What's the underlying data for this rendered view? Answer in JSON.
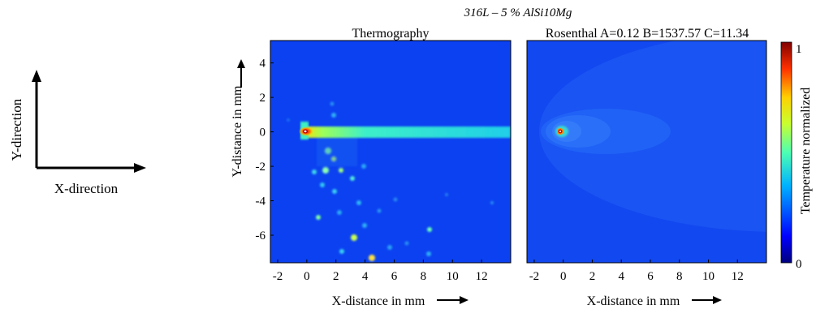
{
  "figure_title": "316L – 5 % AlSi10Mg",
  "direction_legend": {
    "y_label": "Y-direction",
    "x_label": "X-direction"
  },
  "colorbar": {
    "label": "Temperature normalized",
    "max_label": "1",
    "min_label": "0",
    "range": [
      0,
      1
    ],
    "colormap": "jet"
  },
  "chart_data": [
    {
      "type": "heatmap",
      "title": "Thermography",
      "xlabel": "X-distance in mm",
      "ylabel": "Y-distance in mm",
      "xlim": [
        -2.5,
        14
      ],
      "ylim": [
        -7.6,
        5.3
      ],
      "x_ticks": [
        -2,
        0,
        2,
        4,
        6,
        8,
        10,
        12
      ],
      "y_ticks": [
        -6,
        -4,
        -2,
        0,
        2,
        4
      ],
      "hotspot": [
        0,
        0
      ],
      "colors": {
        "background": "#0a3ef0",
        "track": "#22d9e0",
        "peak": "#c41000"
      }
    },
    {
      "type": "heatmap",
      "title": "Rosenthal A=0.12 B=1537.57 C=11.34",
      "xlabel": "X-distance in mm",
      "xlim": [
        -2.5,
        14
      ],
      "ylim": [
        -7.6,
        5.3
      ],
      "x_ticks": [
        -2,
        0,
        2,
        4,
        6,
        8,
        10,
        12
      ],
      "hotspot": [
        0,
        0
      ],
      "parameters": {
        "A": 0.12,
        "B": 1537.57,
        "C": 11.34
      },
      "colors": {
        "background": "#1248f0",
        "contour1": "#1758f4",
        "contour2": "#2468f8",
        "contour3": "#3478fa"
      }
    }
  ]
}
